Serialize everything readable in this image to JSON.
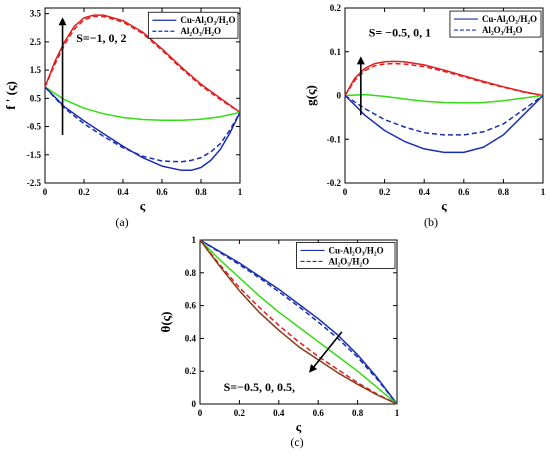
{
  "figure": {
    "colors": {
      "red": "#e02020",
      "green": "#33dd11",
      "blue": "#1a2fb0",
      "brown": "#8b3a1a",
      "axis": "#000000",
      "arrow": "#000000"
    }
  },
  "chart_data": [
    {
      "type": "line",
      "panel_label": "(a)",
      "xlabel": "ς",
      "ylabel": "f ' (ς)",
      "xlim": [
        0,
        1
      ],
      "ylim": [
        -2.5,
        3.7
      ],
      "xticks": [
        0,
        0.2,
        0.4,
        0.6,
        0.8,
        1
      ],
      "xtick_labels": [
        "0",
        "0.2",
        "0.4",
        "0.6",
        "0.8",
        "1"
      ],
      "yticks": [
        -2.5,
        -1.5,
        -0.5,
        0.5,
        1.5,
        2.5,
        3.5
      ],
      "ytick_labels": [
        "-2.5",
        "-1.5",
        "-0.5",
        "0.5",
        "1.5",
        "2.5",
        "3.5"
      ],
      "legend": {
        "placement": "top-right",
        "entries": [
          {
            "label": "Cu-Al₂O₃/H₂O",
            "style": "solid"
          },
          {
            "label": "Al₂O₃/H₂O",
            "style": "dashed"
          }
        ]
      },
      "annotation": {
        "text": "S=−1,  0,  2",
        "arrow": "up"
      },
      "series": [
        {
          "color": "red",
          "style": "solid",
          "x": [
            0,
            0.05,
            0.1,
            0.15,
            0.2,
            0.25,
            0.3,
            0.4,
            0.5,
            0.6,
            0.7,
            0.8,
            0.9,
            1.0
          ],
          "y": [
            0.9,
            1.8,
            2.5,
            3.05,
            3.35,
            3.45,
            3.45,
            3.25,
            2.85,
            2.25,
            1.6,
            1.0,
            0.5,
            0.0
          ]
        },
        {
          "color": "red",
          "style": "dashed",
          "x": [
            0,
            0.05,
            0.1,
            0.15,
            0.2,
            0.25,
            0.3,
            0.4,
            0.5,
            0.6,
            0.7,
            0.8,
            0.9,
            1.0
          ],
          "y": [
            0.9,
            1.7,
            2.4,
            2.95,
            3.28,
            3.4,
            3.4,
            3.2,
            2.8,
            2.2,
            1.55,
            0.95,
            0.45,
            0.0
          ]
        },
        {
          "color": "green",
          "style": "solid",
          "x": [
            0,
            0.1,
            0.2,
            0.3,
            0.4,
            0.5,
            0.6,
            0.7,
            0.8,
            0.9,
            1.0
          ],
          "y": [
            0.9,
            0.45,
            0.15,
            -0.05,
            -0.18,
            -0.25,
            -0.28,
            -0.28,
            -0.24,
            -0.15,
            0.0
          ]
        },
        {
          "color": "blue",
          "style": "solid",
          "x": [
            0,
            0.1,
            0.2,
            0.3,
            0.4,
            0.5,
            0.6,
            0.7,
            0.75,
            0.8,
            0.85,
            0.9,
            0.95,
            1.0
          ],
          "y": [
            0.9,
            0.2,
            -0.3,
            -0.75,
            -1.2,
            -1.6,
            -1.9,
            -2.05,
            -2.05,
            -1.95,
            -1.7,
            -1.3,
            -0.7,
            0.0
          ]
        },
        {
          "color": "blue",
          "style": "dashed",
          "x": [
            0,
            0.1,
            0.2,
            0.3,
            0.4,
            0.5,
            0.6,
            0.7,
            0.75,
            0.8,
            0.85,
            0.9,
            0.95,
            1.0
          ],
          "y": [
            0.9,
            0.15,
            -0.4,
            -0.85,
            -1.25,
            -1.55,
            -1.72,
            -1.75,
            -1.7,
            -1.6,
            -1.4,
            -1.1,
            -0.6,
            0.0
          ]
        }
      ]
    },
    {
      "type": "line",
      "panel_label": "(b)",
      "xlabel": "ς",
      "ylabel": "g(ς)",
      "xlim": [
        0,
        1
      ],
      "ylim": [
        -0.2,
        0.2
      ],
      "xticks": [
        0,
        0.2,
        0.4,
        0.6,
        0.8,
        1
      ],
      "xtick_labels": [
        "0",
        "0.2",
        "0.4",
        "0.6",
        "0.8",
        "1"
      ],
      "yticks": [
        -0.2,
        -0.1,
        0,
        0.1,
        0.2
      ],
      "ytick_labels": [
        "-0.2",
        "-0.1",
        "0",
        "0.1",
        "0.2"
      ],
      "legend": {
        "placement": "top-right",
        "entries": [
          {
            "label": "Cu-Al₂O₃/H₂O",
            "style": "solid"
          },
          {
            "label": "Al₂O₃/H₂O",
            "style": "dashed"
          }
        ]
      },
      "annotation": {
        "text": "S= −0.5, 0, 1",
        "arrow": "up"
      },
      "series": [
        {
          "color": "red",
          "style": "solid",
          "x": [
            0,
            0.05,
            0.1,
            0.15,
            0.2,
            0.25,
            0.3,
            0.4,
            0.5,
            0.6,
            0.7,
            0.8,
            0.9,
            1.0
          ],
          "y": [
            0,
            0.04,
            0.062,
            0.073,
            0.077,
            0.078,
            0.077,
            0.07,
            0.058,
            0.045,
            0.032,
            0.02,
            0.009,
            0.0
          ]
        },
        {
          "color": "red",
          "style": "dashed",
          "x": [
            0,
            0.05,
            0.1,
            0.15,
            0.2,
            0.25,
            0.3,
            0.4,
            0.5,
            0.6,
            0.7,
            0.8,
            0.9,
            1.0
          ],
          "y": [
            0,
            0.035,
            0.057,
            0.068,
            0.072,
            0.073,
            0.072,
            0.066,
            0.055,
            0.043,
            0.03,
            0.019,
            0.008,
            0.0
          ]
        },
        {
          "color": "green",
          "style": "solid",
          "x": [
            0,
            0.1,
            0.2,
            0.3,
            0.4,
            0.5,
            0.6,
            0.7,
            0.8,
            0.9,
            1.0
          ],
          "y": [
            0,
            0.002,
            -0.002,
            -0.008,
            -0.013,
            -0.016,
            -0.017,
            -0.016,
            -0.012,
            -0.006,
            0.0
          ]
        },
        {
          "color": "blue",
          "style": "solid",
          "x": [
            0,
            0.05,
            0.1,
            0.2,
            0.3,
            0.4,
            0.5,
            0.6,
            0.7,
            0.8,
            0.9,
            1.0
          ],
          "y": [
            0,
            -0.022,
            -0.045,
            -0.08,
            -0.105,
            -0.122,
            -0.13,
            -0.13,
            -0.118,
            -0.09,
            -0.045,
            0.0
          ]
        },
        {
          "color": "blue",
          "style": "dashed",
          "x": [
            0,
            0.05,
            0.1,
            0.2,
            0.3,
            0.4,
            0.5,
            0.6,
            0.7,
            0.8,
            0.9,
            1.0
          ],
          "y": [
            0,
            -0.015,
            -0.03,
            -0.055,
            -0.072,
            -0.085,
            -0.09,
            -0.09,
            -0.083,
            -0.065,
            -0.033,
            0.0
          ]
        }
      ]
    },
    {
      "type": "line",
      "panel_label": "(c)",
      "xlabel": "ς",
      "ylabel": "θ(ς)",
      "xlim": [
        0,
        1
      ],
      "ylim": [
        0,
        1
      ],
      "xticks": [
        0,
        0.2,
        0.4,
        0.6,
        0.8,
        1
      ],
      "xtick_labels": [
        "0",
        "0.2",
        "0.4",
        "0.6",
        "0.8",
        "1"
      ],
      "yticks": [
        0,
        0.2,
        0.4,
        0.6,
        0.8,
        1
      ],
      "ytick_labels": [
        "0",
        "0.2",
        "0.4",
        "0.6",
        "0.8",
        "1"
      ],
      "legend": {
        "placement": "top-right",
        "entries": [
          {
            "label": "Cu-Al₂O₃/H₂O",
            "style": "solid"
          },
          {
            "label": "Al₂O₃/H₂O",
            "style": "dashed"
          }
        ]
      },
      "annotation": {
        "text": "S=−0.5, 0, 0.5,",
        "arrow": "down-left"
      },
      "series": [
        {
          "color": "blue",
          "style": "solid",
          "x": [
            0,
            0.1,
            0.2,
            0.3,
            0.4,
            0.5,
            0.6,
            0.7,
            0.8,
            0.9,
            1.0
          ],
          "y": [
            1.0,
            0.93,
            0.86,
            0.78,
            0.7,
            0.61,
            0.52,
            0.42,
            0.3,
            0.16,
            0.0
          ]
        },
        {
          "color": "blue",
          "style": "dashed",
          "x": [
            0,
            0.1,
            0.2,
            0.3,
            0.4,
            0.5,
            0.6,
            0.7,
            0.8,
            0.9,
            1.0
          ],
          "y": [
            1.0,
            0.925,
            0.85,
            0.77,
            0.685,
            0.595,
            0.5,
            0.4,
            0.285,
            0.15,
            0.0
          ]
        },
        {
          "color": "green",
          "style": "solid",
          "x": [
            0,
            0.1,
            0.2,
            0.3,
            0.4,
            0.5,
            0.6,
            0.7,
            0.8,
            0.9,
            1.0
          ],
          "y": [
            1.0,
            0.88,
            0.77,
            0.66,
            0.56,
            0.47,
            0.38,
            0.29,
            0.2,
            0.1,
            0.0
          ]
        },
        {
          "color": "red",
          "style": "dashed",
          "x": [
            0,
            0.1,
            0.2,
            0.3,
            0.4,
            0.5,
            0.6,
            0.7,
            0.8,
            0.9,
            1.0
          ],
          "y": [
            1.0,
            0.85,
            0.71,
            0.59,
            0.48,
            0.38,
            0.29,
            0.21,
            0.13,
            0.06,
            0.0
          ]
        },
        {
          "color": "brown",
          "style": "solid",
          "x": [
            0,
            0.1,
            0.2,
            0.3,
            0.4,
            0.5,
            0.6,
            0.7,
            0.8,
            0.9,
            1.0
          ],
          "y": [
            1.0,
            0.84,
            0.69,
            0.56,
            0.45,
            0.35,
            0.27,
            0.19,
            0.12,
            0.055,
            0.0
          ]
        }
      ]
    }
  ]
}
